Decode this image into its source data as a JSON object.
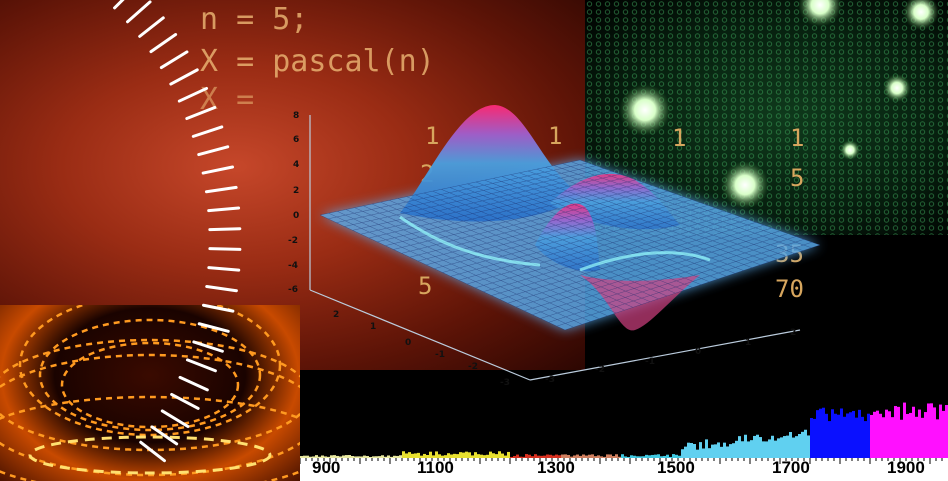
{
  "code_lines": [
    "n = 5;",
    "X = pascal(n)",
    "X ="
  ],
  "matrix_values": {
    "col_a": [
      "1",
      "2",
      "5"
    ],
    "col_b": [
      "1",
      "1",
      "1",
      "5",
      "35",
      "70"
    ]
  },
  "surface_axes": {
    "z_ticks": [
      "8",
      "6",
      "4",
      "2",
      "0",
      "-2",
      "-4",
      "-6"
    ],
    "x_ticks": [
      "2",
      "1",
      "0",
      "-1",
      "-2",
      "-3"
    ],
    "y_ticks": [
      "-3",
      "-2",
      "-1",
      "0",
      "1",
      "2"
    ]
  },
  "spectrum_ticks": [
    "900",
    "1100",
    "1300",
    "1500",
    "1700",
    "1900"
  ],
  "colors": {
    "surface_blue": "#4aa0e0",
    "surface_peak": "#ff3080",
    "spectrum_blue": "#0a10ff",
    "spectrum_magenta": "#ff10ff"
  }
}
